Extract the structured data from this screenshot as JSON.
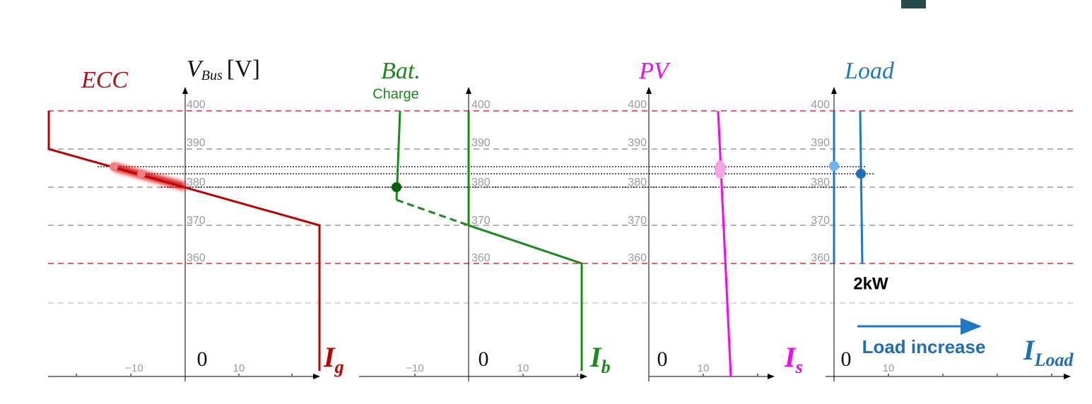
{
  "axis_label": {
    "symbol": "V",
    "subscript": "Bus",
    "unit": "[V]"
  },
  "panels": [
    {
      "title": "ECC",
      "current": {
        "symbol": "I",
        "subscript": "g"
      },
      "zero": "0",
      "x_ticks": [
        "−10",
        "10"
      ],
      "v_ticks": [
        "400",
        "390",
        "380",
        "370",
        "360"
      ]
    },
    {
      "title": "Bat.",
      "subtitle": "Charge",
      "current": {
        "symbol": "I",
        "subscript": "b"
      },
      "zero": "0",
      "x_ticks": [
        "−10",
        "10"
      ],
      "v_ticks": [
        "400",
        "390",
        "380",
        "370",
        "360"
      ]
    },
    {
      "title": "PV",
      "current": {
        "symbol": "I",
        "subscript": "s"
      },
      "zero": "0",
      "x_ticks": [
        "10"
      ],
      "v_ticks": [
        "400",
        "390",
        "380",
        "370",
        "360"
      ]
    },
    {
      "title": "Load",
      "current": {
        "symbol": "I",
        "subscript": "Load"
      },
      "zero": "0",
      "x_ticks": [
        "10"
      ],
      "v_ticks": [
        "400",
        "390",
        "380",
        "370",
        "360"
      ]
    }
  ],
  "annotations": {
    "power": "2kW",
    "arrow": "Load increase"
  }
}
